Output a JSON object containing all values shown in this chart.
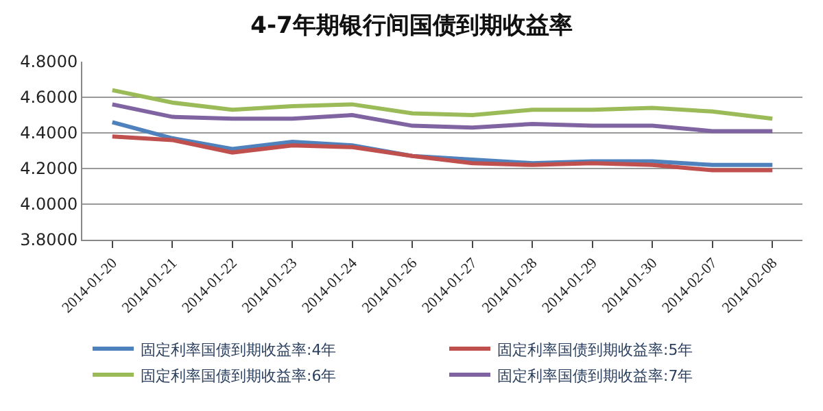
{
  "chart_data": {
    "type": "line",
    "title": "4-7年期银行间国债到期收益率",
    "categories": [
      "2014-01-20",
      "2014-01-21",
      "2014-01-22",
      "2014-01-23",
      "2014-01-24",
      "2014-01-26",
      "2014-01-27",
      "2014-01-28",
      "2014-01-29",
      "2014-01-30",
      "2014-02-07",
      "2014-02-08"
    ],
    "series": [
      {
        "name": "固定利率国债到期收益率:4年",
        "color": "#4f81bd",
        "values": [
          4.46,
          4.37,
          4.31,
          4.35,
          4.33,
          4.27,
          4.25,
          4.23,
          4.24,
          4.24,
          4.22,
          4.22
        ]
      },
      {
        "name": "固定利率国债到期收益率:5年",
        "color": "#c0504d",
        "values": [
          4.38,
          4.36,
          4.29,
          4.33,
          4.32,
          4.27,
          4.23,
          4.22,
          4.23,
          4.22,
          4.19,
          4.19
        ]
      },
      {
        "name": "固定利率国债到期收益率:6年",
        "color": "#9bbb59",
        "values": [
          4.64,
          4.57,
          4.53,
          4.55,
          4.56,
          4.51,
          4.5,
          4.53,
          4.53,
          4.54,
          4.52,
          4.48
        ]
      },
      {
        "name": "固定利率国债到期收益率:7年",
        "color": "#8064a2",
        "values": [
          4.56,
          4.49,
          4.48,
          4.48,
          4.5,
          4.44,
          4.43,
          4.45,
          4.44,
          4.44,
          4.41,
          4.41
        ]
      }
    ],
    "ylim": [
      3.8,
      4.8
    ],
    "yticks": [
      {
        "value": 3.8,
        "label": "3.8000"
      },
      {
        "value": 4.0,
        "label": "4.0000"
      },
      {
        "value": 4.2,
        "label": "4.2000"
      },
      {
        "value": 4.4,
        "label": "4.4000"
      },
      {
        "value": 4.6,
        "label": "4.6000"
      },
      {
        "value": 4.8,
        "label": "4.8000"
      }
    ],
    "grid": "y",
    "legend": "bottom",
    "marker": "none",
    "line_style": "solid"
  }
}
